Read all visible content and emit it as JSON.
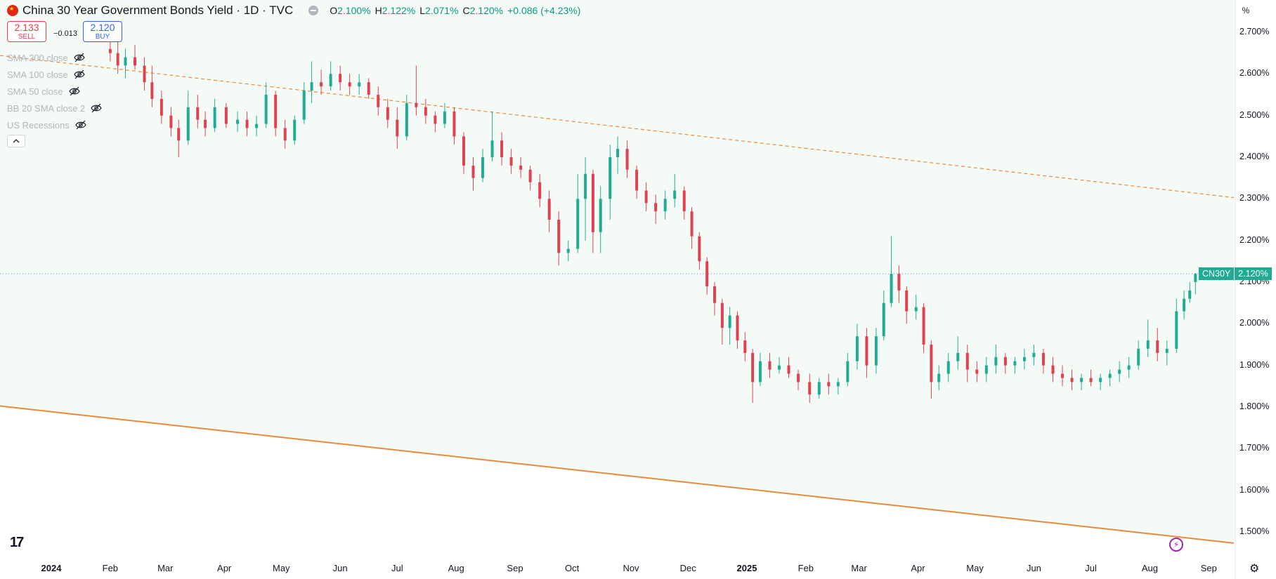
{
  "header": {
    "title": "China 30 Year Government Bonds Yield · 1D · TVC",
    "ohlc": [
      {
        "label": "O",
        "value": "2.100%"
      },
      {
        "label": "H",
        "value": "2.122%"
      },
      {
        "label": "L",
        "value": "2.071%"
      },
      {
        "label": "C",
        "value": "2.120%"
      },
      {
        "label": "",
        "value": "+0.086 (+4.23%)"
      }
    ]
  },
  "trade": {
    "sell_price": "2.133",
    "sell_label": "SELL",
    "spread": "−0.013",
    "buy_price": "2.120",
    "buy_label": "BUY"
  },
  "indicators": [
    {
      "label": "SMA 200 close"
    },
    {
      "label": "SMA 100 close"
    },
    {
      "label": "SMA 50 close"
    },
    {
      "label": "BB 20 SMA close 2"
    },
    {
      "label": "US Recessions"
    }
  ],
  "price_tag": {
    "symbol": "CN30Y",
    "value": "2.120%"
  },
  "axis_unit": "%",
  "colors": {
    "up": "#22ab94",
    "down": "#e0414f",
    "channel_fill": "#f4fbf6",
    "channel_line": "#e8893c",
    "last_price_line": "#5b7fd1"
  },
  "chart_data": {
    "type": "candlestick",
    "title": "China 30 Year Government Bonds Yield · 1D · TVC",
    "y_range": [
      1.47,
      2.76
    ],
    "y_ticks": [
      "2.700%",
      "2.600%",
      "2.500%",
      "2.400%",
      "2.300%",
      "2.200%",
      "2.100%",
      "2.000%",
      "1.900%",
      "1.800%",
      "1.700%",
      "1.600%",
      "1.500%"
    ],
    "y_tick_values": [
      2.7,
      2.6,
      2.5,
      2.4,
      2.3,
      2.2,
      2.1,
      2.0,
      1.9,
      1.8,
      1.7,
      1.6,
      1.5
    ],
    "x_ticks": [
      {
        "label": "2024",
        "date": "2024-01-01",
        "bold": true
      },
      {
        "label": "Feb",
        "date": "2024-02-01"
      },
      {
        "label": "Mar",
        "date": "2024-03-01"
      },
      {
        "label": "Apr",
        "date": "2024-04-01"
      },
      {
        "label": "May",
        "date": "2024-05-01"
      },
      {
        "label": "Jun",
        "date": "2024-06-01"
      },
      {
        "label": "Jul",
        "date": "2024-07-01"
      },
      {
        "label": "Aug",
        "date": "2024-08-01"
      },
      {
        "label": "Sep",
        "date": "2024-09-01"
      },
      {
        "label": "Oct",
        "date": "2024-10-01"
      },
      {
        "label": "Nov",
        "date": "2024-11-01"
      },
      {
        "label": "Dec",
        "date": "2024-12-01"
      },
      {
        "label": "2025",
        "date": "2025-01-01",
        "bold": true
      },
      {
        "label": "Feb",
        "date": "2025-02-01"
      },
      {
        "label": "Mar",
        "date": "2025-03-01"
      },
      {
        "label": "Apr",
        "date": "2025-04-01"
      },
      {
        "label": "May",
        "date": "2025-05-01"
      },
      {
        "label": "Jun",
        "date": "2025-06-01"
      },
      {
        "label": "Jul",
        "date": "2025-07-01"
      },
      {
        "label": "Aug",
        "date": "2025-08-01"
      },
      {
        "label": "Sep",
        "date": "2025-09-01"
      }
    ],
    "last_price": 2.12,
    "channel_upper": [
      {
        "date": "2024-01-01",
        "value": 2.63
      },
      {
        "date": "2025-09-01",
        "value": 2.31
      }
    ],
    "channel_lower": [
      {
        "date": "2023-12-10",
        "value": 1.8
      },
      {
        "date": "2025-09-01",
        "value": 1.48
      }
    ],
    "candles": [
      {
        "date": "2024-02-01",
        "open": 2.66,
        "high": 2.68,
        "low": 2.63,
        "close": 2.65
      },
      {
        "date": "2024-02-05",
        "open": 2.65,
        "high": 2.68,
        "low": 2.6,
        "close": 2.62
      },
      {
        "date": "2024-02-09",
        "open": 2.62,
        "high": 2.66,
        "low": 2.59,
        "close": 2.64
      },
      {
        "date": "2024-02-14",
        "open": 2.64,
        "high": 2.67,
        "low": 2.61,
        "close": 2.62
      },
      {
        "date": "2024-02-19",
        "open": 2.62,
        "high": 2.64,
        "low": 2.56,
        "close": 2.58
      },
      {
        "date": "2024-02-23",
        "open": 2.58,
        "high": 2.62,
        "low": 2.52,
        "close": 2.54
      },
      {
        "date": "2024-02-28",
        "open": 2.54,
        "high": 2.56,
        "low": 2.48,
        "close": 2.5
      },
      {
        "date": "2024-03-04",
        "open": 2.5,
        "high": 2.52,
        "low": 2.45,
        "close": 2.47
      },
      {
        "date": "2024-03-08",
        "open": 2.47,
        "high": 2.49,
        "low": 2.4,
        "close": 2.44
      },
      {
        "date": "2024-03-13",
        "open": 2.44,
        "high": 2.56,
        "low": 2.43,
        "close": 2.52
      },
      {
        "date": "2024-03-18",
        "open": 2.52,
        "high": 2.55,
        "low": 2.47,
        "close": 2.49
      },
      {
        "date": "2024-03-22",
        "open": 2.49,
        "high": 2.51,
        "low": 2.45,
        "close": 2.47
      },
      {
        "date": "2024-03-27",
        "open": 2.47,
        "high": 2.54,
        "low": 2.46,
        "close": 2.52
      },
      {
        "date": "2024-04-02",
        "open": 2.52,
        "high": 2.53,
        "low": 2.47,
        "close": 2.48
      },
      {
        "date": "2024-04-08",
        "open": 2.48,
        "high": 2.51,
        "low": 2.46,
        "close": 2.49
      },
      {
        "date": "2024-04-13",
        "open": 2.49,
        "high": 2.51,
        "low": 2.45,
        "close": 2.47
      },
      {
        "date": "2024-04-18",
        "open": 2.47,
        "high": 2.5,
        "low": 2.45,
        "close": 2.48
      },
      {
        "date": "2024-04-23",
        "open": 2.48,
        "high": 2.58,
        "low": 2.47,
        "close": 2.55
      },
      {
        "date": "2024-04-28",
        "open": 2.55,
        "high": 2.56,
        "low": 2.45,
        "close": 2.47
      },
      {
        "date": "2024-05-03",
        "open": 2.47,
        "high": 2.49,
        "low": 2.42,
        "close": 2.44
      },
      {
        "date": "2024-05-08",
        "open": 2.44,
        "high": 2.5,
        "low": 2.43,
        "close": 2.49
      },
      {
        "date": "2024-05-13",
        "open": 2.49,
        "high": 2.58,
        "low": 2.48,
        "close": 2.56
      },
      {
        "date": "2024-05-17",
        "open": 2.56,
        "high": 2.63,
        "low": 2.53,
        "close": 2.58
      },
      {
        "date": "2024-05-22",
        "open": 2.58,
        "high": 2.61,
        "low": 2.55,
        "close": 2.57
      },
      {
        "date": "2024-05-27",
        "open": 2.57,
        "high": 2.63,
        "low": 2.56,
        "close": 2.6
      },
      {
        "date": "2024-06-01",
        "open": 2.6,
        "high": 2.62,
        "low": 2.56,
        "close": 2.58
      },
      {
        "date": "2024-06-06",
        "open": 2.58,
        "high": 2.6,
        "low": 2.55,
        "close": 2.57
      },
      {
        "date": "2024-06-11",
        "open": 2.57,
        "high": 2.6,
        "low": 2.55,
        "close": 2.58
      },
      {
        "date": "2024-06-16",
        "open": 2.58,
        "high": 2.59,
        "low": 2.54,
        "close": 2.55
      },
      {
        "date": "2024-06-21",
        "open": 2.55,
        "high": 2.57,
        "low": 2.5,
        "close": 2.52
      },
      {
        "date": "2024-06-26",
        "open": 2.52,
        "high": 2.54,
        "low": 2.47,
        "close": 2.49
      },
      {
        "date": "2024-07-01",
        "open": 2.49,
        "high": 2.52,
        "low": 2.42,
        "close": 2.45
      },
      {
        "date": "2024-07-06",
        "open": 2.45,
        "high": 2.55,
        "low": 2.44,
        "close": 2.53
      },
      {
        "date": "2024-07-11",
        "open": 2.53,
        "high": 2.62,
        "low": 2.5,
        "close": 2.52
      },
      {
        "date": "2024-07-16",
        "open": 2.52,
        "high": 2.54,
        "low": 2.48,
        "close": 2.5
      },
      {
        "date": "2024-07-21",
        "open": 2.5,
        "high": 2.51,
        "low": 2.46,
        "close": 2.48
      },
      {
        "date": "2024-07-26",
        "open": 2.48,
        "high": 2.53,
        "low": 2.47,
        "close": 2.51
      },
      {
        "date": "2024-07-31",
        "open": 2.51,
        "high": 2.52,
        "low": 2.43,
        "close": 2.45
      },
      {
        "date": "2024-08-05",
        "open": 2.45,
        "high": 2.46,
        "low": 2.36,
        "close": 2.38
      },
      {
        "date": "2024-08-10",
        "open": 2.38,
        "high": 2.4,
        "low": 2.32,
        "close": 2.35
      },
      {
        "date": "2024-08-15",
        "open": 2.35,
        "high": 2.42,
        "low": 2.34,
        "close": 2.4
      },
      {
        "date": "2024-08-20",
        "open": 2.4,
        "high": 2.51,
        "low": 2.39,
        "close": 2.44
      },
      {
        "date": "2024-08-25",
        "open": 2.44,
        "high": 2.46,
        "low": 2.38,
        "close": 2.4
      },
      {
        "date": "2024-08-30",
        "open": 2.4,
        "high": 2.42,
        "low": 2.36,
        "close": 2.38
      },
      {
        "date": "2024-09-04",
        "open": 2.38,
        "high": 2.4,
        "low": 2.35,
        "close": 2.37
      },
      {
        "date": "2024-09-09",
        "open": 2.37,
        "high": 2.38,
        "low": 2.32,
        "close": 2.34
      },
      {
        "date": "2024-09-14",
        "open": 2.34,
        "high": 2.36,
        "low": 2.28,
        "close": 2.3
      },
      {
        "date": "2024-09-19",
        "open": 2.3,
        "high": 2.32,
        "low": 2.22,
        "close": 2.25
      },
      {
        "date": "2024-09-24",
        "open": 2.25,
        "high": 2.27,
        "low": 2.14,
        "close": 2.17
      },
      {
        "date": "2024-09-29",
        "open": 2.17,
        "high": 2.2,
        "low": 2.15,
        "close": 2.18
      },
      {
        "date": "2024-10-04",
        "open": 2.18,
        "high": 2.36,
        "low": 2.17,
        "close": 2.3
      },
      {
        "date": "2024-10-08",
        "open": 2.3,
        "high": 2.4,
        "low": 2.2,
        "close": 2.36
      },
      {
        "date": "2024-10-12",
        "open": 2.36,
        "high": 2.37,
        "low": 2.17,
        "close": 2.22
      },
      {
        "date": "2024-10-16",
        "open": 2.22,
        "high": 2.33,
        "low": 2.17,
        "close": 2.3
      },
      {
        "date": "2024-10-21",
        "open": 2.3,
        "high": 2.43,
        "low": 2.25,
        "close": 2.4
      },
      {
        "date": "2024-10-25",
        "open": 2.4,
        "high": 2.45,
        "low": 2.36,
        "close": 2.42
      },
      {
        "date": "2024-10-30",
        "open": 2.42,
        "high": 2.44,
        "low": 2.35,
        "close": 2.37
      },
      {
        "date": "2024-11-04",
        "open": 2.37,
        "high": 2.38,
        "low": 2.3,
        "close": 2.32
      },
      {
        "date": "2024-11-09",
        "open": 2.32,
        "high": 2.34,
        "low": 2.27,
        "close": 2.29
      },
      {
        "date": "2024-11-14",
        "open": 2.29,
        "high": 2.31,
        "low": 2.24,
        "close": 2.27
      },
      {
        "date": "2024-11-19",
        "open": 2.27,
        "high": 2.32,
        "low": 2.25,
        "close": 2.3
      },
      {
        "date": "2024-11-24",
        "open": 2.3,
        "high": 2.36,
        "low": 2.28,
        "close": 2.32
      },
      {
        "date": "2024-11-29",
        "open": 2.32,
        "high": 2.33,
        "low": 2.25,
        "close": 2.27
      },
      {
        "date": "2024-12-03",
        "open": 2.27,
        "high": 2.28,
        "low": 2.18,
        "close": 2.21
      },
      {
        "date": "2024-12-07",
        "open": 2.21,
        "high": 2.22,
        "low": 2.13,
        "close": 2.15
      },
      {
        "date": "2024-12-11",
        "open": 2.15,
        "high": 2.16,
        "low": 2.07,
        "close": 2.09
      },
      {
        "date": "2024-12-15",
        "open": 2.09,
        "high": 2.1,
        "low": 2.02,
        "close": 2.05
      },
      {
        "date": "2024-12-19",
        "open": 2.05,
        "high": 2.06,
        "low": 1.95,
        "close": 1.99
      },
      {
        "date": "2024-12-23",
        "open": 1.99,
        "high": 2.04,
        "low": 1.95,
        "close": 2.02
      },
      {
        "date": "2024-12-27",
        "open": 2.02,
        "high": 2.03,
        "low": 1.94,
        "close": 1.96
      },
      {
        "date": "2024-12-31",
        "open": 1.96,
        "high": 1.98,
        "low": 1.91,
        "close": 1.93
      },
      {
        "date": "2025-01-04",
        "open": 1.93,
        "high": 1.94,
        "low": 1.81,
        "close": 1.86
      },
      {
        "date": "2025-01-08",
        "open": 1.86,
        "high": 1.93,
        "low": 1.85,
        "close": 1.91
      },
      {
        "date": "2025-01-13",
        "open": 1.91,
        "high": 1.93,
        "low": 1.87,
        "close": 1.89
      },
      {
        "date": "2025-01-18",
        "open": 1.89,
        "high": 1.92,
        "low": 1.88,
        "close": 1.9
      },
      {
        "date": "2025-01-23",
        "open": 1.9,
        "high": 1.92,
        "low": 1.87,
        "close": 1.88
      },
      {
        "date": "2025-01-28",
        "open": 1.88,
        "high": 1.89,
        "low": 1.84,
        "close": 1.86
      },
      {
        "date": "2025-02-03",
        "open": 1.86,
        "high": 1.88,
        "low": 1.81,
        "close": 1.83
      },
      {
        "date": "2025-02-08",
        "open": 1.83,
        "high": 1.87,
        "low": 1.82,
        "close": 1.86
      },
      {
        "date": "2025-02-13",
        "open": 1.86,
        "high": 1.88,
        "low": 1.83,
        "close": 1.85
      },
      {
        "date": "2025-02-18",
        "open": 1.85,
        "high": 1.87,
        "low": 1.83,
        "close": 1.86
      },
      {
        "date": "2025-02-23",
        "open": 1.86,
        "high": 1.93,
        "low": 1.85,
        "close": 1.91
      },
      {
        "date": "2025-02-28",
        "open": 1.91,
        "high": 2.0,
        "low": 1.89,
        "close": 1.97
      },
      {
        "date": "2025-03-05",
        "open": 1.97,
        "high": 1.99,
        "low": 1.87,
        "close": 1.9
      },
      {
        "date": "2025-03-10",
        "open": 1.9,
        "high": 1.99,
        "low": 1.88,
        "close": 1.97
      },
      {
        "date": "2025-03-14",
        "open": 1.97,
        "high": 2.08,
        "low": 1.96,
        "close": 2.05
      },
      {
        "date": "2025-03-18",
        "open": 2.05,
        "high": 2.21,
        "low": 2.04,
        "close": 2.12
      },
      {
        "date": "2025-03-22",
        "open": 2.12,
        "high": 2.14,
        "low": 2.05,
        "close": 2.08
      },
      {
        "date": "2025-03-26",
        "open": 2.08,
        "high": 2.09,
        "low": 2.0,
        "close": 2.03
      },
      {
        "date": "2025-03-31",
        "open": 2.03,
        "high": 2.07,
        "low": 2.01,
        "close": 2.04
      },
      {
        "date": "2025-04-04",
        "open": 2.04,
        "high": 2.05,
        "low": 1.93,
        "close": 1.95
      },
      {
        "date": "2025-04-08",
        "open": 1.95,
        "high": 1.96,
        "low": 1.82,
        "close": 1.86
      },
      {
        "date": "2025-04-12",
        "open": 1.86,
        "high": 1.9,
        "low": 1.84,
        "close": 1.88
      },
      {
        "date": "2025-04-17",
        "open": 1.88,
        "high": 1.93,
        "low": 1.86,
        "close": 1.91
      },
      {
        "date": "2025-04-22",
        "open": 1.91,
        "high": 1.97,
        "low": 1.89,
        "close": 1.93
      },
      {
        "date": "2025-04-27",
        "open": 1.93,
        "high": 1.95,
        "low": 1.86,
        "close": 1.89
      },
      {
        "date": "2025-05-02",
        "open": 1.89,
        "high": 1.91,
        "low": 1.86,
        "close": 1.88
      },
      {
        "date": "2025-05-07",
        "open": 1.88,
        "high": 1.92,
        "low": 1.86,
        "close": 1.9
      },
      {
        "date": "2025-05-12",
        "open": 1.9,
        "high": 1.95,
        "low": 1.88,
        "close": 1.92
      },
      {
        "date": "2025-05-17",
        "open": 1.92,
        "high": 1.93,
        "low": 1.88,
        "close": 1.9
      },
      {
        "date": "2025-05-22",
        "open": 1.9,
        "high": 1.92,
        "low": 1.88,
        "close": 1.91
      },
      {
        "date": "2025-05-27",
        "open": 1.91,
        "high": 1.94,
        "low": 1.89,
        "close": 1.92
      },
      {
        "date": "2025-06-01",
        "open": 1.92,
        "high": 1.95,
        "low": 1.9,
        "close": 1.93
      },
      {
        "date": "2025-06-06",
        "open": 1.93,
        "high": 1.94,
        "low": 1.88,
        "close": 1.9
      },
      {
        "date": "2025-06-11",
        "open": 1.9,
        "high": 1.92,
        "low": 1.86,
        "close": 1.88
      },
      {
        "date": "2025-06-16",
        "open": 1.88,
        "high": 1.9,
        "low": 1.85,
        "close": 1.87
      },
      {
        "date": "2025-06-21",
        "open": 1.87,
        "high": 1.89,
        "low": 1.84,
        "close": 1.86
      },
      {
        "date": "2025-06-26",
        "open": 1.86,
        "high": 1.88,
        "low": 1.84,
        "close": 1.87
      },
      {
        "date": "2025-07-01",
        "open": 1.87,
        "high": 1.89,
        "low": 1.85,
        "close": 1.86
      },
      {
        "date": "2025-07-06",
        "open": 1.86,
        "high": 1.88,
        "low": 1.84,
        "close": 1.87
      },
      {
        "date": "2025-07-11",
        "open": 1.87,
        "high": 1.89,
        "low": 1.85,
        "close": 1.88
      },
      {
        "date": "2025-07-16",
        "open": 1.88,
        "high": 1.91,
        "low": 1.86,
        "close": 1.89
      },
      {
        "date": "2025-07-21",
        "open": 1.89,
        "high": 1.92,
        "low": 1.87,
        "close": 1.9
      },
      {
        "date": "2025-07-26",
        "open": 1.9,
        "high": 1.96,
        "low": 1.89,
        "close": 1.94
      },
      {
        "date": "2025-07-31",
        "open": 1.94,
        "high": 2.01,
        "low": 1.92,
        "close": 1.96
      },
      {
        "date": "2025-08-05",
        "open": 1.96,
        "high": 1.99,
        "low": 1.91,
        "close": 1.93
      },
      {
        "date": "2025-08-10",
        "open": 1.93,
        "high": 1.96,
        "low": 1.9,
        "close": 1.94
      },
      {
        "date": "2025-08-15",
        "open": 1.94,
        "high": 2.06,
        "low": 1.93,
        "close": 2.03
      },
      {
        "date": "2025-08-19",
        "open": 2.03,
        "high": 2.08,
        "low": 2.01,
        "close": 2.06
      },
      {
        "date": "2025-08-22",
        "open": 2.06,
        "high": 2.1,
        "low": 2.05,
        "close": 2.08
      },
      {
        "date": "2025-08-25",
        "open": 2.1,
        "high": 2.122,
        "low": 2.071,
        "close": 2.12
      }
    ]
  }
}
